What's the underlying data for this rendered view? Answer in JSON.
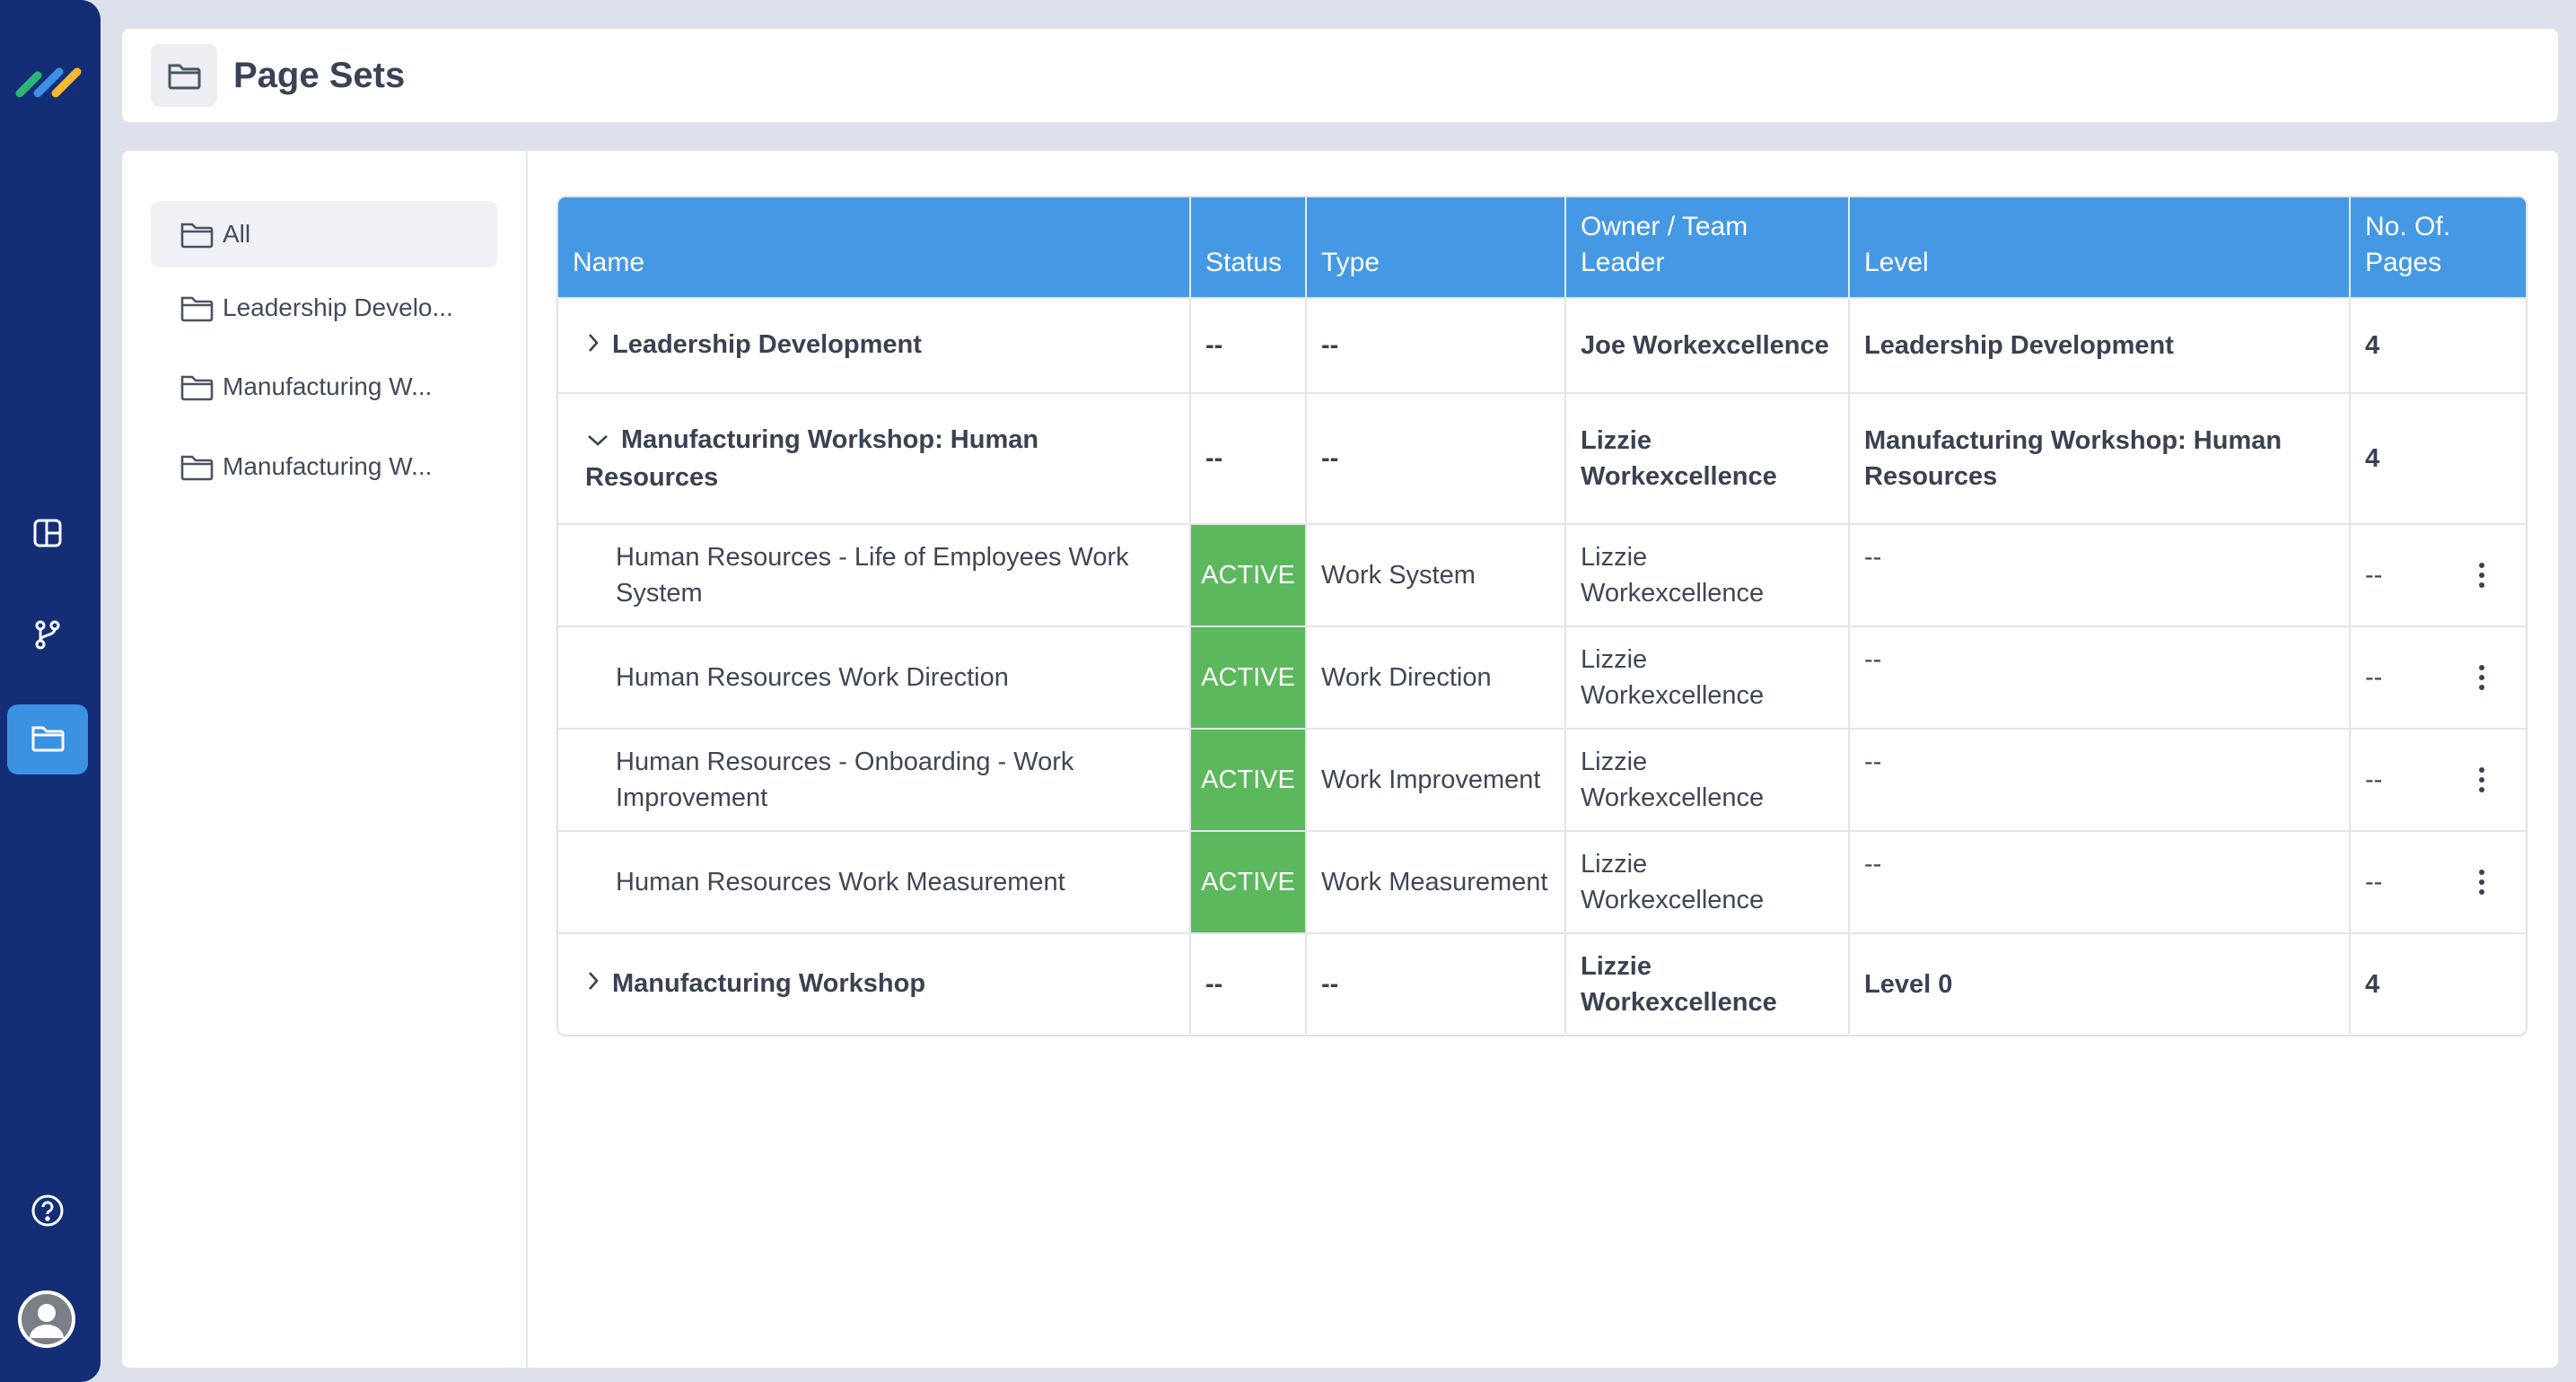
{
  "app": {
    "brand_colors": [
      "#2bb673",
      "#3b92e3",
      "#f5b82e"
    ],
    "nav": [
      {
        "icon": "dashboard-icon",
        "active": false
      },
      {
        "icon": "workflow-icon",
        "active": false
      },
      {
        "icon": "folder-icon",
        "active": true
      }
    ],
    "footer_icons": [
      "help-icon",
      "avatar-icon"
    ]
  },
  "header": {
    "title": "Page Sets",
    "icon": "folder-icon"
  },
  "folders": [
    {
      "label": "All",
      "selected": true
    },
    {
      "label": "Leadership Develo...",
      "selected": false
    },
    {
      "label": "Manufacturing W...",
      "selected": false
    },
    {
      "label": "Manufacturing W...",
      "selected": false
    }
  ],
  "table": {
    "columns": [
      "Name",
      "Status",
      "Type",
      "Owner / Team Leader",
      "Level",
      "No. Of. Pages"
    ],
    "rows": [
      {
        "kind": "parent",
        "expanded": false,
        "name": "Leadership Development",
        "status": "--",
        "type": "--",
        "owner": "Joe Workexcellence",
        "level": "Leadership Development",
        "pages": "4"
      },
      {
        "kind": "parent",
        "expanded": true,
        "name": "Manufacturing Workshop: Human Resources",
        "status": "--",
        "type": "--",
        "owner": "Lizzie Workexcellence",
        "level": "Manufacturing Workshop: Human Resources",
        "pages": "4"
      },
      {
        "kind": "child",
        "name": "Human Resources - Life of Employees Work System",
        "status": "ACTIVE",
        "type": "Work System",
        "owner": "Lizzie Workexcellence",
        "level": "--",
        "pages": "--"
      },
      {
        "kind": "child",
        "name": "Human Resources Work Direction",
        "status": "ACTIVE",
        "type": "Work Direction",
        "owner": "Lizzie Workexcellence",
        "level": "--",
        "pages": "--"
      },
      {
        "kind": "child",
        "name": "Human Resources - Onboarding - Work Improvement",
        "status": "ACTIVE",
        "type": "Work Improvement",
        "owner": "Lizzie Workexcellence",
        "level": "--",
        "pages": "--"
      },
      {
        "kind": "child",
        "name": "Human Resources Work Measurement",
        "status": "ACTIVE",
        "type": "Work Measurement",
        "owner": "Lizzie Workexcellence",
        "level": "--",
        "pages": "--"
      },
      {
        "kind": "parent",
        "expanded": false,
        "name": "Manufacturing Workshop",
        "status": "--",
        "type": "--",
        "owner": "Lizzie Workexcellence",
        "level": "Level 0",
        "pages": "4"
      }
    ]
  }
}
